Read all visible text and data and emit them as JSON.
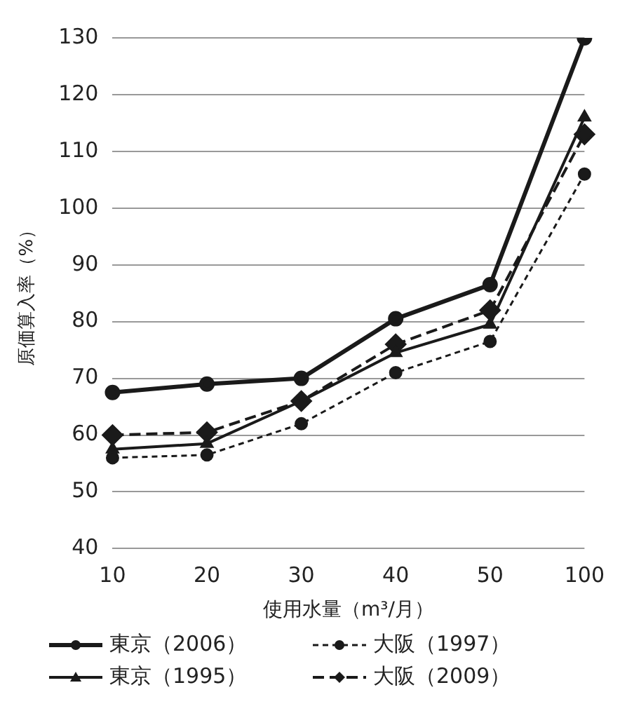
{
  "chart_data": {
    "type": "line",
    "xlabel": "使用水量（m³/月）",
    "ylabel": "原価算入率（%）",
    "categories": [
      "10",
      "20",
      "30",
      "40",
      "50",
      "100"
    ],
    "series": [
      {
        "name": "東京（2006）",
        "color": "#1a1a1a",
        "values": [
          67.5,
          69,
          70,
          80.5,
          86.5,
          130
        ],
        "marker": "circle",
        "line_style": "solid"
      },
      {
        "name": "大阪（1997）",
        "color": "#1a1a1a",
        "values": [
          56,
          56.5,
          62,
          71,
          76.5,
          106
        ],
        "marker": "circle",
        "line_style": "dotted"
      },
      {
        "name": "東京（1995）",
        "color": "#1a1a1a",
        "values": [
          57.5,
          58.5,
          66,
          74.5,
          79.5,
          116
        ],
        "marker": "triangle",
        "line_style": "solid"
      },
      {
        "name": "大阪（2009）",
        "color": "#1a1a1a",
        "values": [
          60,
          60.5,
          66,
          76,
          82,
          113
        ],
        "marker": "diamond",
        "line_style": "dashed"
      }
    ],
    "ylim": [
      40,
      130
    ],
    "yticks": [
      40,
      50,
      60,
      70,
      80,
      90,
      100,
      110,
      120,
      130
    ],
    "grid": "y",
    "legend": "bottom"
  }
}
